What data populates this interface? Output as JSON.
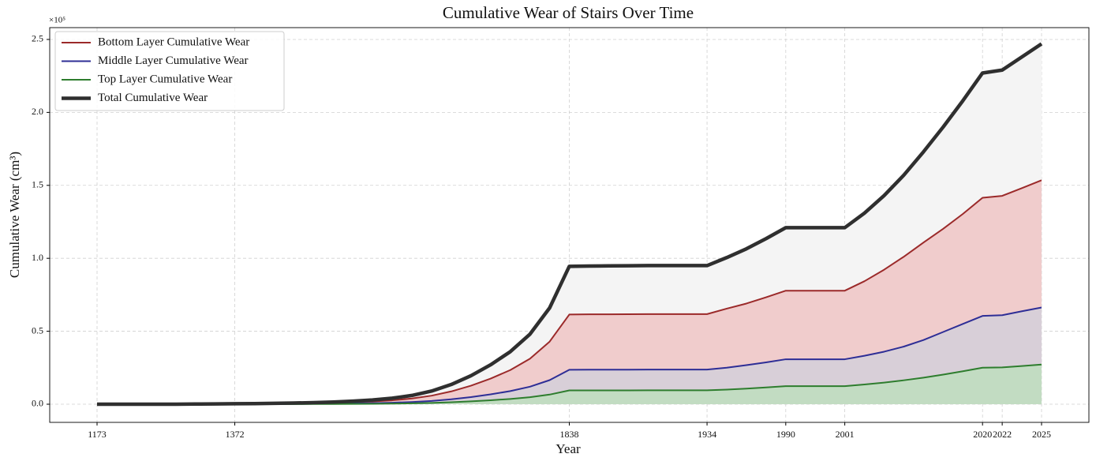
{
  "chart_data": {
    "type": "line",
    "title": "Cumulative Wear of Stairs Over Time",
    "x_label": "Year",
    "y_label": "Cumulative Wear (cm³)",
    "y_offset_label": "×10⁵",
    "categories": [
      "1173",
      null,
      null,
      null,
      null,
      null,
      null,
      "1372",
      null,
      null,
      null,
      null,
      null,
      null,
      null,
      null,
      null,
      null,
      null,
      null,
      null,
      null,
      null,
      null,
      "1838",
      null,
      null,
      null,
      null,
      null,
      null,
      "1934",
      null,
      null,
      null,
      "1990",
      null,
      null,
      "2001",
      null,
      null,
      null,
      null,
      null,
      null,
      "2020",
      "2022",
      null,
      "2025"
    ],
    "series": [
      {
        "name": "Bottom Layer Cumulative Wear",
        "color": "#9b2a2a",
        "fill": "#f0cccc",
        "width": 2,
        "values": [
          0,
          0,
          0,
          0,
          0,
          65,
          130,
          195,
          260,
          390,
          520,
          715,
          975,
          1365,
          1885,
          2665,
          3900,
          5850,
          8775,
          12675,
          17550,
          23400,
          31200,
          42900,
          61450,
          61580,
          61620,
          61710,
          61750,
          61750,
          61750,
          61750,
          65500,
          69000,
          73300,
          77800,
          77800,
          77800,
          77800,
          84300,
          92200,
          101100,
          110800,
          120200,
          130400,
          141500,
          142800,
          148100,
          153500
        ]
      },
      {
        "name": "Middle Layer Cumulative Wear",
        "color": "#2e2e96",
        "fill": "#d8cfd8",
        "width": 2,
        "values": [
          0,
          0,
          0,
          0,
          0,
          25,
          50,
          75,
          100,
          150,
          200,
          275,
          375,
          525,
          725,
          1025,
          1500,
          2250,
          3375,
          4875,
          6750,
          9000,
          12000,
          16500,
          23600,
          23650,
          23700,
          23700,
          23750,
          23750,
          23750,
          23750,
          25000,
          26800,
          28700,
          30800,
          30800,
          30800,
          30800,
          33200,
          36000,
          39500,
          44000,
          49500,
          55000,
          60500,
          61000,
          63700,
          66300
        ]
      },
      {
        "name": "Top Layer Cumulative Wear",
        "color": "#2e7d2e",
        "fill": "#c2dcc2",
        "width": 2,
        "values": [
          0,
          0,
          0,
          0,
          0,
          10,
          20,
          30,
          40,
          60,
          80,
          110,
          150,
          210,
          290,
          410,
          600,
          900,
          1350,
          1950,
          2700,
          3600,
          4800,
          6600,
          9450,
          9470,
          9480,
          9490,
          9500,
          9500,
          9500,
          9500,
          10000,
          10700,
          11500,
          12400,
          12400,
          12400,
          12400,
          13500,
          14800,
          16400,
          18200,
          20300,
          22600,
          25000,
          25200,
          26200,
          27200
        ]
      },
      {
        "name": "Total Cumulative Wear",
        "color": "#2f2f2f",
        "fill": "#f4f4f4",
        "width": 4.5,
        "values": [
          0,
          0,
          0,
          0,
          0,
          100,
          200,
          300,
          400,
          600,
          800,
          1100,
          1500,
          2100,
          2900,
          4100,
          6000,
          9000,
          13500,
          19500,
          27000,
          36000,
          48000,
          66000,
          94500,
          94700,
          94800,
          94900,
          95000,
          95000,
          95000,
          95000,
          100500,
          106500,
          113500,
          121000,
          121000,
          121000,
          121000,
          131000,
          143000,
          157000,
          173000,
          190000,
          208000,
          227000,
          229000,
          238000,
          247000
        ]
      }
    ],
    "ylim": [
      -12450,
      258100
    ],
    "yticks": [
      {
        "value": 0,
        "label": "0.0"
      },
      {
        "value": 50000,
        "label": "0.5"
      },
      {
        "value": 100000,
        "label": "1.0"
      },
      {
        "value": 150000,
        "label": "1.5"
      },
      {
        "value": 200000,
        "label": "2.0"
      },
      {
        "value": 250000,
        "label": "2.5"
      }
    ],
    "grid": true,
    "legend": "upper left"
  }
}
